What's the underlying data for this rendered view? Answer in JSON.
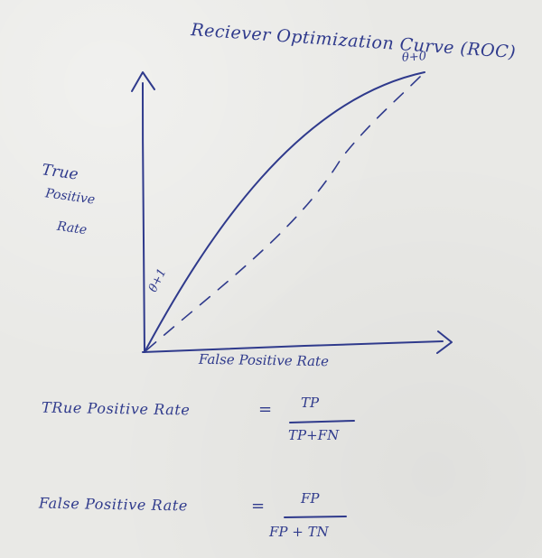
{
  "title": "Reciever Optimization Curve (ROC)",
  "y_axis_label": [
    "True",
    "Positive",
    "Rate"
  ],
  "x_axis_label": "False Positive Rate",
  "point_labels": {
    "top_right": "θ+0",
    "bottom_left": "θ+1"
  },
  "formulas": [
    {
      "lhs": "TRue Positive Rate",
      "equals": "=",
      "numerator": "TP",
      "denominator": "TP+FN"
    },
    {
      "lhs": "False Positive Rate",
      "equals": "=",
      "numerator": "FP",
      "denominator": "FP + TN"
    }
  ],
  "colors": {
    "ink": "#2f3a8c",
    "paper": "#e9e9e6"
  }
}
